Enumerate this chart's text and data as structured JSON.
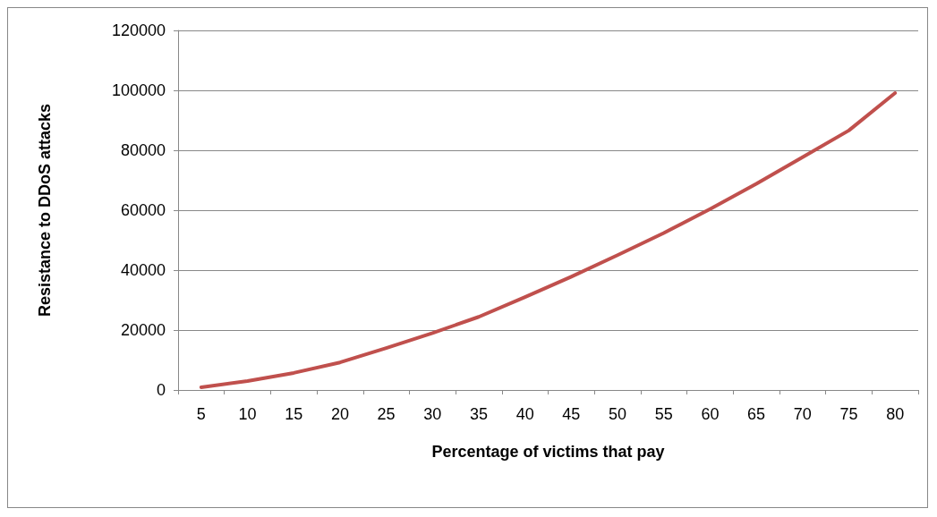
{
  "chart_data": {
    "type": "line",
    "xlabel": "Percentage of victims that pay",
    "ylabel": "Resistance to DDoS attacks",
    "categories": [
      "5",
      "10",
      "15",
      "20",
      "25",
      "30",
      "35",
      "40",
      "45",
      "50",
      "55",
      "60",
      "65",
      "70",
      "75",
      "80"
    ],
    "series": [
      {
        "color": "#c0504d",
        "values": [
          900,
          3000,
          5700,
          9200,
          14000,
          19000,
          24400,
          31000,
          37800,
          45000,
          52400,
          60400,
          68800,
          77700,
          86600,
          99100
        ]
      }
    ],
    "ylim": [
      0,
      120000
    ],
    "yticks": [
      0,
      20000,
      40000,
      60000,
      80000,
      100000,
      120000
    ],
    "grid": "y",
    "marker": "none",
    "line_style": "solid"
  }
}
